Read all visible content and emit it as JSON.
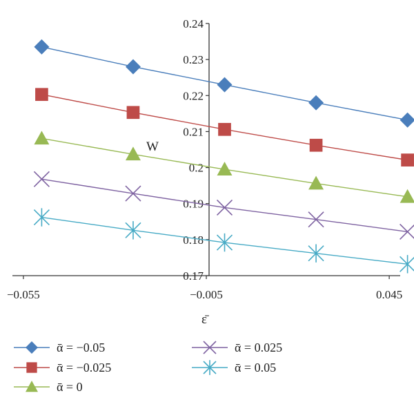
{
  "chart_data": {
    "type": "line",
    "xlabel": "ε̄",
    "ylabel": "W",
    "x": [
      -0.05,
      -0.025,
      0.0,
      0.025,
      0.05
    ],
    "x_ticks": [
      "−0.055",
      "−0.005",
      "0.045"
    ],
    "y_ticks": [
      "0.17",
      "0.18",
      "0.19",
      "0.2",
      "0.21",
      "0.22",
      "0.23",
      "0.24"
    ],
    "xlim": [
      -0.058,
      0.048
    ],
    "ylim": [
      0.17,
      0.24
    ],
    "grid": false,
    "legend_position": "bottom",
    "series": [
      {
        "name": "ᾱ = −0.05",
        "values": [
          0.2335,
          0.228,
          0.223,
          0.218,
          0.2132
        ],
        "color": "#4a7ebb",
        "marker": "diamond"
      },
      {
        "name": "ᾱ = −0.025",
        "values": [
          0.2203,
          0.2153,
          0.2106,
          0.2062,
          0.2021
        ],
        "color": "#be4b48",
        "marker": "square"
      },
      {
        "name": "ᾱ = 0",
        "values": [
          0.2081,
          0.2037,
          0.1995,
          0.1956,
          0.1919
        ],
        "color": "#98b954",
        "marker": "triangle"
      },
      {
        "name": "ᾱ = 0.025",
        "values": [
          0.1968,
          0.1928,
          0.1889,
          0.1856,
          0.1822
        ],
        "color": "#7e62a1",
        "marker": "x"
      },
      {
        "name": "ᾱ = 0.05",
        "values": [
          0.1862,
          0.1826,
          0.1792,
          0.1762,
          0.1732
        ],
        "color": "#46aac5",
        "marker": "asterisk"
      }
    ]
  }
}
